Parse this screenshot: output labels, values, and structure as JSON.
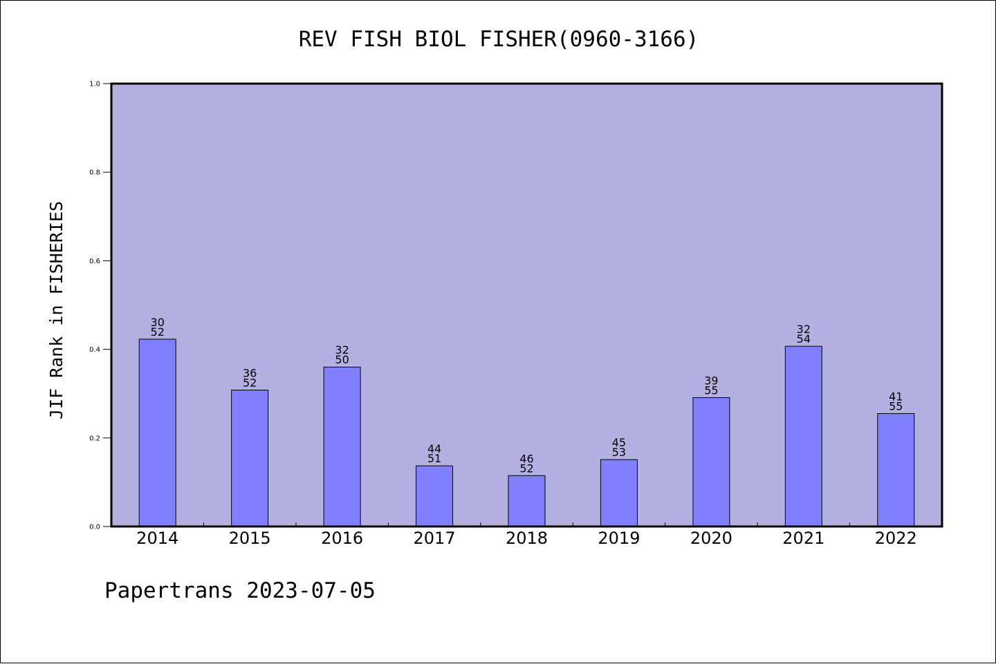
{
  "chart_data": {
    "type": "bar",
    "title": "REV FISH BIOL FISHER(0960-3166)",
    "ylabel": "JIF Rank in FISHERIES",
    "xlabel": "",
    "categories": [
      "2014",
      "2015",
      "2016",
      "2017",
      "2018",
      "2019",
      "2020",
      "2021",
      "2022"
    ],
    "values": [
      0.423,
      0.308,
      0.36,
      0.137,
      0.115,
      0.151,
      0.291,
      0.407,
      0.255
    ],
    "rank_labels": [
      {
        "rank": "30",
        "total": "52"
      },
      {
        "rank": "36",
        "total": "52"
      },
      {
        "rank": "32",
        "total": "50"
      },
      {
        "rank": "44",
        "total": "51"
      },
      {
        "rank": "46",
        "total": "52"
      },
      {
        "rank": "45",
        "total": "53"
      },
      {
        "rank": "39",
        "total": "55"
      },
      {
        "rank": "32",
        "total": "54"
      },
      {
        "rank": "41",
        "total": "55"
      }
    ],
    "ylim": [
      0,
      1.0
    ],
    "yticks": [
      "0.0",
      "0.2",
      "0.4",
      "0.6",
      "0.8",
      "1.0"
    ],
    "grid": false,
    "legend": "none",
    "colors": {
      "plot_background": "#b5b0e2",
      "bar_fill": "#8080fe",
      "bar_stroke": "#000000",
      "axis": "#000000"
    }
  },
  "footer": {
    "text": "Papertrans 2023-07-05"
  }
}
